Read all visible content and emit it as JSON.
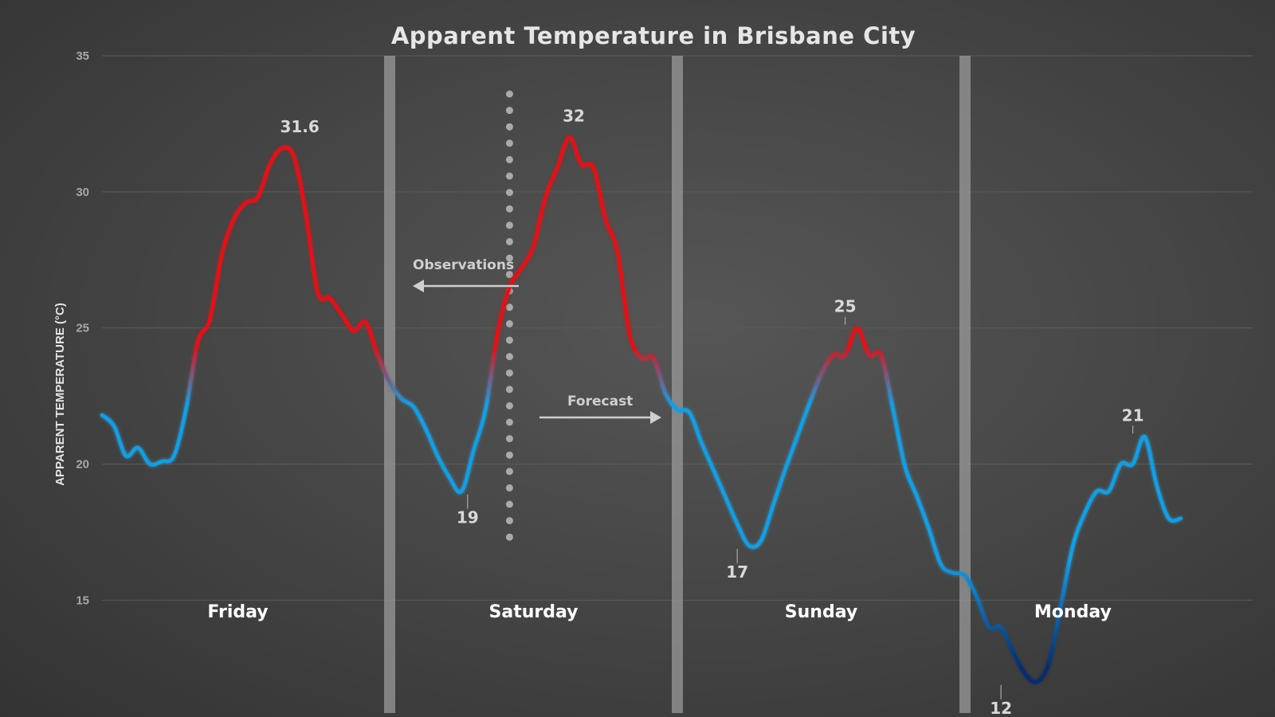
{
  "colors": {
    "background": "#474747",
    "hot": "#d6141c",
    "mild": "#1e9bdc",
    "cold": "#0a2a6b",
    "separator": "#9a9a9a",
    "gridline": "#5a5a5a"
  },
  "chart_data": {
    "type": "line",
    "title": "Apparent Temperature in Brisbane City",
    "ylabel": "APPARENT TEMPERATURE (°C)",
    "xlabel": "",
    "ylim": [
      11,
      35
    ],
    "yticks": [
      "15",
      "20",
      "25",
      "30",
      "35"
    ],
    "grid": true,
    "days": [
      "Friday",
      "Saturday",
      "Sunday",
      "Monday"
    ],
    "x_unit": "hours from start of Friday",
    "x_range": [
      0,
      96
    ],
    "day_boundaries_hours": [
      24,
      48,
      72
    ],
    "observation_forecast_split_hours": 34,
    "annotations": {
      "observations": "Observations",
      "forecast": "Forecast"
    },
    "peak_labels": [
      {
        "x": 15.5,
        "y": 31.6,
        "text": "31.6"
      },
      {
        "x": 30.5,
        "y": 19,
        "text": "19"
      },
      {
        "x": 37.5,
        "y": 32,
        "text": "32"
      },
      {
        "x": 53,
        "y": 17,
        "text": "17"
      },
      {
        "x": 62,
        "y": 25,
        "text": "25"
      },
      {
        "x": 75,
        "y": 12,
        "text": "12"
      },
      {
        "x": 86,
        "y": 21,
        "text": "21"
      }
    ],
    "series": [
      {
        "x": [
          0,
          1,
          2,
          3,
          4,
          5,
          6,
          7,
          8,
          9,
          10,
          11,
          12,
          13,
          14,
          15,
          16,
          17,
          18,
          19,
          20,
          21,
          22,
          23,
          24,
          25,
          26,
          27,
          28,
          29,
          30,
          31,
          32,
          33,
          34,
          35,
          36,
          37,
          38,
          39,
          40,
          41,
          42,
          43,
          44,
          45,
          46,
          47,
          48,
          49,
          50,
          51,
          52,
          53,
          54,
          55,
          56,
          57,
          58,
          59,
          60,
          61,
          62,
          63,
          64,
          65,
          66,
          67,
          68,
          69,
          70,
          71,
          72,
          73,
          74,
          75,
          76,
          77,
          78,
          79,
          80,
          81,
          82,
          83,
          84,
          85,
          86,
          87,
          88,
          89,
          90
        ],
        "values": [
          21.8,
          21.4,
          20.3,
          20.6,
          20,
          20.1,
          20.3,
          22,
          24.5,
          25.3,
          27.7,
          29,
          29.6,
          29.8,
          31,
          31.6,
          31.3,
          29.2,
          26.3,
          26.1,
          25.5,
          24.9,
          25.2,
          24,
          23,
          22.4,
          22.1,
          21.3,
          20.3,
          19.5,
          19,
          20.5,
          22,
          24.8,
          26.5,
          27.2,
          28,
          29.8,
          30.9,
          32,
          31,
          30.9,
          29,
          27.8,
          24.8,
          23.9,
          23.9,
          22.6,
          22,
          21.9,
          20.8,
          19.8,
          18.8,
          17.8,
          17,
          17.2,
          18.5,
          19.8,
          21,
          22.2,
          23.3,
          24,
          24,
          25,
          24,
          24,
          22,
          19.9,
          18.8,
          17.6,
          16.3,
          16,
          15.9,
          15.1,
          14,
          14,
          13.1,
          12.3,
          12,
          12.7,
          14.8,
          17,
          18.2,
          19,
          19,
          20,
          20,
          21,
          19.2,
          18,
          18
        ]
      }
    ]
  }
}
